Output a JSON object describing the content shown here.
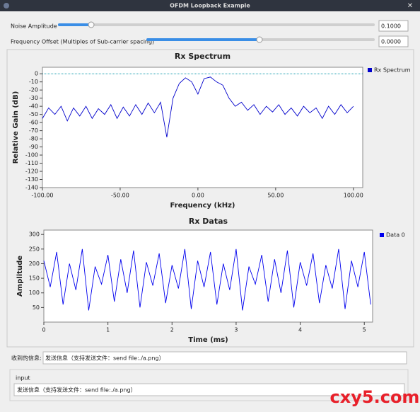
{
  "window": {
    "title": "OFDM Loopback Example"
  },
  "controls": [
    {
      "label": "Noise Amplitude",
      "value": "0.1000"
    },
    {
      "label": "Frequency Offset (Multiples of Sub-carrier spacing)",
      "value": "0.0000"
    }
  ],
  "received": {
    "label": "收到的信息:",
    "text": "发送信息（支持发送文件：send file:./a.png）"
  },
  "input": {
    "title": "input",
    "text": "发送信息（支持发送文件：send file:./a.png）"
  },
  "watermark": "cxy5.com",
  "chart_data": [
    {
      "type": "line",
      "title": "Rx Spectrum",
      "xlabel": "Frequency (kHz)",
      "ylabel": "Relative Gain (dB)",
      "x": [
        -100,
        -96,
        -92,
        -88,
        -84,
        -80,
        -76,
        -72,
        -68,
        -64,
        -60,
        -56,
        -52,
        -48,
        -44,
        -40,
        -36,
        -32,
        -28,
        -24,
        -20,
        -16,
        -12,
        -8,
        -4,
        0,
        4,
        8,
        12,
        16,
        20,
        24,
        28,
        32,
        36,
        40,
        44,
        48,
        52,
        56,
        60,
        64,
        68,
        72,
        76,
        80,
        84,
        88,
        92,
        96,
        100
      ],
      "series": [
        {
          "name": "Rx Spectrum",
          "color": "#0000cc",
          "values": [
            -55,
            -42,
            -50,
            -40,
            -58,
            -42,
            -52,
            -40,
            -55,
            -43,
            -50,
            -38,
            -55,
            -41,
            -52,
            -38,
            -50,
            -36,
            -48,
            -35,
            -78,
            -30,
            -12,
            -5,
            -10,
            -25,
            -6,
            -4,
            -10,
            -14,
            -30,
            -40,
            -35,
            -45,
            -38,
            -50,
            -40,
            -47,
            -38,
            -50,
            -42,
            -52,
            -40,
            -48,
            -42,
            -55,
            -40,
            -50,
            -38,
            -48,
            -40
          ]
        }
      ],
      "hline": 0,
      "hline_color": "#1a9fb0",
      "xlim": [
        -100,
        106
      ],
      "ylim": [
        -140,
        8
      ],
      "xticks": [
        {
          "value": -100,
          "label": "-100.00"
        },
        {
          "value": -50,
          "label": "-50.00"
        },
        {
          "value": 0,
          "label": "0.00"
        },
        {
          "value": 50,
          "label": "50.00"
        },
        {
          "value": 100,
          "label": "100.00"
        }
      ],
      "yticks": [
        0,
        -10,
        -20,
        -30,
        -40,
        -50,
        -60,
        -70,
        -80,
        -90,
        -100,
        -110,
        -120,
        -130,
        -140
      ]
    },
    {
      "type": "line",
      "title": "Rx Datas",
      "xlabel": "Time (ms)",
      "ylabel": "Amplitude",
      "x": [
        0,
        0.1,
        0.2,
        0.3,
        0.4,
        0.5,
        0.6,
        0.7,
        0.8,
        0.9,
        1,
        1.1,
        1.2,
        1.3,
        1.4,
        1.5,
        1.6,
        1.7,
        1.8,
        1.9,
        2,
        2.1,
        2.2,
        2.3,
        2.4,
        2.5,
        2.6,
        2.7,
        2.8,
        2.9,
        3,
        3.1,
        3.2,
        3.3,
        3.4,
        3.5,
        3.6,
        3.7,
        3.8,
        3.9,
        4,
        4.1,
        4.2,
        4.3,
        4.4,
        4.5,
        4.6,
        4.7,
        4.8,
        4.9,
        5,
        5.1
      ],
      "series": [
        {
          "name": "Data 0",
          "color": "#0000ee",
          "values": [
            210,
            120,
            240,
            60,
            200,
            110,
            250,
            40,
            190,
            130,
            230,
            70,
            215,
            100,
            245,
            50,
            205,
            125,
            235,
            65,
            195,
            115,
            250,
            45,
            210,
            120,
            240,
            60,
            200,
            110,
            250,
            40,
            190,
            130,
            230,
            70,
            215,
            100,
            245,
            50,
            205,
            125,
            235,
            65,
            195,
            115,
            250,
            45,
            210,
            120,
            240,
            60
          ]
        }
      ],
      "xlim": [
        0,
        5.13
      ],
      "ylim": [
        0,
        315
      ],
      "xticks": [
        0,
        1,
        2,
        3,
        4,
        5
      ],
      "yticks": [
        50,
        100,
        150,
        200,
        250,
        300
      ]
    }
  ]
}
